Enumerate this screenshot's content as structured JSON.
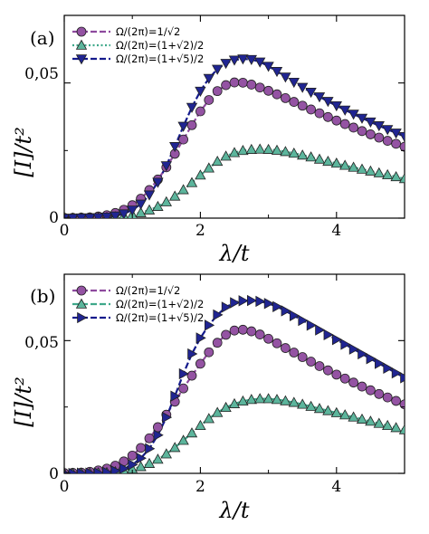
{
  "chart_data": [
    {
      "type": "line",
      "panel_label": "(a)",
      "xlabel": "λ/t",
      "ylabel": "[I]/t²",
      "xlim": [
        0,
        5
      ],
      "ylim": [
        0,
        0.075
      ],
      "xticks": [
        "0",
        "2",
        "4"
      ],
      "yticks": [
        "0",
        "0,05"
      ],
      "legend_position": "top-left",
      "grid": false,
      "x": [
        0,
        0.125,
        0.25,
        0.375,
        0.5,
        0.625,
        0.75,
        0.875,
        1,
        1.125,
        1.25,
        1.375,
        1.5,
        1.625,
        1.75,
        1.875,
        2,
        2.125,
        2.25,
        2.375,
        2.5,
        2.625,
        2.75,
        2.875,
        3,
        3.125,
        3.25,
        3.375,
        3.5,
        3.625,
        3.75,
        3.875,
        4,
        4.125,
        4.25,
        4.375,
        4.5,
        4.625,
        4.75,
        4.875,
        5
      ],
      "series": [
        {
          "name": "Ω/(2π)=1/√2",
          "marker": "circle",
          "line": "dashed",
          "color": "#8e4a9e",
          "values": [
            0.0001,
            0.0001,
            0.0002,
            0.0003,
            0.0006,
            0.0011,
            0.0019,
            0.0031,
            0.0048,
            0.0072,
            0.0104,
            0.0143,
            0.0188,
            0.0238,
            0.0291,
            0.0344,
            0.0395,
            0.0437,
            0.047,
            0.0492,
            0.0502,
            0.0501,
            0.0494,
            0.0483,
            0.0471,
            0.0458,
            0.0444,
            0.043,
            0.0416,
            0.0402,
            0.0388,
            0.0374,
            0.0361,
            0.0348,
            0.0335,
            0.0322,
            0.031,
            0.0298,
            0.0286,
            0.0275,
            0.0264
          ]
        },
        {
          "name": "Ω/(2π)=(1+√2)/2",
          "marker": "triangle-up",
          "line": "dotted",
          "color": "#3fa88a",
          "values": [
            0,
            0,
            0.0001,
            0.0001,
            0.0002,
            0.0003,
            0.0005,
            0.0008,
            0.0013,
            0.002,
            0.003,
            0.0043,
            0.006,
            0.0081,
            0.0105,
            0.0131,
            0.0159,
            0.0185,
            0.021,
            0.0229,
            0.0242,
            0.025,
            0.0254,
            0.0255,
            0.0254,
            0.0251,
            0.0246,
            0.024,
            0.0233,
            0.0226,
            0.0218,
            0.021,
            0.0203,
            0.0195,
            0.0188,
            0.0181,
            0.0174,
            0.0167,
            0.016,
            0.0153,
            0.0146
          ]
        },
        {
          "name": "Ω/(2π)=(1+√5)/2",
          "marker": "triangle-down",
          "line": "dashed",
          "color": "#141a8c",
          "values": [
            0,
            0,
            0.0001,
            0.0001,
            0.0002,
            0.0004,
            0.0008,
            0.0016,
            0.003,
            0.0052,
            0.0086,
            0.0133,
            0.0194,
            0.0265,
            0.034,
            0.041,
            0.047,
            0.0517,
            0.0551,
            0.0573,
            0.0585,
            0.0589,
            0.0587,
            0.0578,
            0.0562,
            0.0543,
            0.0522,
            0.0503,
            0.0484,
            0.0466,
            0.0449,
            0.0432,
            0.0416,
            0.04,
            0.0385,
            0.037,
            0.0356,
            0.0342,
            0.0328,
            0.0315,
            0.0302
          ]
        }
      ]
    },
    {
      "type": "line",
      "panel_label": "(b)",
      "xlabel": "λ/t",
      "ylabel": "[I]/t²",
      "xlim": [
        0,
        5
      ],
      "ylim": [
        0,
        0.075
      ],
      "xticks": [
        "0",
        "2",
        "4"
      ],
      "yticks": [
        "0",
        "0,05"
      ],
      "legend_position": "top-left",
      "grid": false,
      "x": [
        0,
        0.125,
        0.25,
        0.375,
        0.5,
        0.625,
        0.75,
        0.875,
        1,
        1.125,
        1.25,
        1.375,
        1.5,
        1.625,
        1.75,
        1.875,
        2,
        2.125,
        2.25,
        2.375,
        2.5,
        2.625,
        2.75,
        2.875,
        3,
        3.125,
        3.25,
        3.375,
        3.5,
        3.625,
        3.75,
        3.875,
        4,
        4.125,
        4.25,
        4.375,
        4.5,
        4.625,
        4.75,
        4.875,
        5
      ],
      "series": [
        {
          "name": "Ω/(2π)=1/√2",
          "marker": "circle",
          "line": "dashed",
          "color": "#8e4a9e",
          "values": [
            0.0001,
            0.0002,
            0.0003,
            0.0006,
            0.0011,
            0.0018,
            0.0029,
            0.0045,
            0.0067,
            0.0096,
            0.0132,
            0.0174,
            0.0221,
            0.027,
            0.032,
            0.0368,
            0.0413,
            0.0456,
            0.0492,
            0.0522,
            0.0538,
            0.0541,
            0.0535,
            0.0523,
            0.0507,
            0.049,
            0.0472,
            0.0455,
            0.0438,
            0.0421,
            0.0404,
            0.0388,
            0.0372,
            0.0357,
            0.0342,
            0.0327,
            0.0313,
            0.0299,
            0.0286,
            0.0273,
            0.026
          ]
        },
        {
          "name": "Ω/(2π)=(1+√2)/2",
          "marker": "triangle-up",
          "line": "dashed",
          "color": "#3fa88a",
          "values": [
            0,
            0,
            0.0001,
            0.0001,
            0.0002,
            0.0003,
            0.0006,
            0.001,
            0.0016,
            0.0025,
            0.0037,
            0.0053,
            0.0073,
            0.0097,
            0.0124,
            0.0152,
            0.018,
            0.0206,
            0.0229,
            0.0248,
            0.0262,
            0.0272,
            0.0278,
            0.0281,
            0.0281,
            0.0278,
            0.0273,
            0.0267,
            0.026,
            0.0252,
            0.0244,
            0.0236,
            0.0228,
            0.022,
            0.0212,
            0.0204,
            0.0196,
            0.0188,
            0.018,
            0.0172,
            0.0164
          ]
        },
        {
          "name": "Ω/(2π)=(1+√5)/2",
          "marker": "triangle-right",
          "line": "dashed",
          "color": "#141a8c",
          "values": [
            0,
            0,
            0.0001,
            0.0001,
            0.0002,
            0.0004,
            0.0009,
            0.0018,
            0.0033,
            0.0057,
            0.0093,
            0.0144,
            0.0211,
            0.0291,
            0.0375,
            0.045,
            0.051,
            0.0558,
            0.0597,
            0.0626,
            0.0643,
            0.065,
            0.0651,
            0.0648,
            0.064,
            0.0628,
            0.0612,
            0.0594,
            0.0576,
            0.0558,
            0.054,
            0.0522,
            0.0504,
            0.0486,
            0.0468,
            0.045,
            0.0432,
            0.0414,
            0.0396,
            0.0378,
            0.036
          ]
        }
      ]
    }
  ]
}
